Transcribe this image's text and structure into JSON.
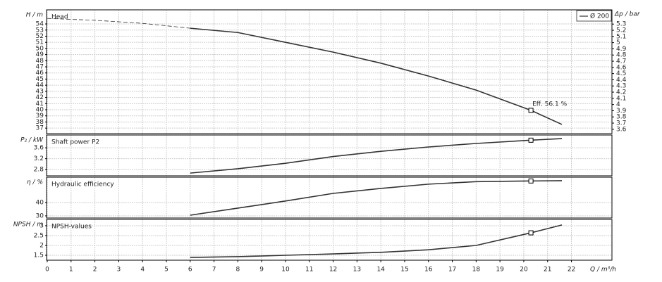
{
  "chart_data": [
    {
      "type": "line",
      "title": "Head",
      "y_label": "H / m",
      "y2_label": "Δp / bar",
      "xlim": [
        0,
        23.7
      ],
      "ylim": [
        36.1,
        56.3
      ],
      "yticks": [
        37,
        38,
        39,
        40,
        41,
        42,
        43,
        44,
        45,
        46,
        47,
        48,
        49,
        50,
        51,
        52,
        53,
        54
      ],
      "y2lim": [
        3.53,
        5.53
      ],
      "y2ticks": [
        3.6,
        3.7,
        3.8,
        3.9,
        4,
        4.1,
        4.2,
        4.3,
        4.4,
        4.5,
        4.6,
        4.7,
        4.8,
        4.9,
        5,
        5.1,
        5.2,
        5.3
      ],
      "grid": true,
      "legend": "top-right",
      "series": [
        {
          "name": "Ø 200",
          "color": "#333333",
          "x": [
            6,
            8,
            10,
            12,
            14,
            16,
            18,
            20.3,
            21.6
          ],
          "values": [
            53.3,
            52.6,
            51.0,
            49.4,
            47.6,
            45.5,
            43.2,
            39.9,
            37.6
          ]
        },
        {
          "style": "dashed",
          "color": "#333333",
          "x": [
            0,
            2,
            4,
            6
          ],
          "values": [
            54.9,
            54.6,
            54.1,
            53.3
          ]
        }
      ],
      "operating_point": {
        "x": 20.3,
        "value": 39.9,
        "label": "Eff.  56.1 %"
      }
    },
    {
      "type": "line",
      "title": "Shaft power P2",
      "y_label": "P₂ / kW",
      "xlim": [
        0,
        23.7
      ],
      "ylim": [
        2.57,
        4.07
      ],
      "yticks": [
        2.8,
        3.2,
        3.6
      ],
      "grid": true,
      "series": [
        {
          "color": "#333333",
          "x": [
            6,
            8,
            10,
            12,
            14,
            16,
            18,
            20.3,
            21.6
          ],
          "values": [
            2.67,
            2.83,
            3.03,
            3.28,
            3.47,
            3.63,
            3.76,
            3.88,
            3.94
          ]
        }
      ],
      "operating_point": {
        "x": 20.3,
        "value": 3.88
      }
    },
    {
      "type": "line",
      "title": "Hydraulic efficiency",
      "y_label": "η / %",
      "xlim": [
        0,
        23.7
      ],
      "ylim": [
        28.4,
        58.9
      ],
      "yticks": [
        30,
        40
      ],
      "grid": true,
      "series": [
        {
          "color": "#333333",
          "x": [
            6,
            8,
            10,
            12,
            14,
            16,
            18,
            20.3,
            21.6
          ],
          "values": [
            30.5,
            35.8,
            41.1,
            46.8,
            50.5,
            53.7,
            55.6,
            56.1,
            56.3
          ]
        }
      ],
      "operating_point": {
        "x": 20.3,
        "value": 56.1
      }
    },
    {
      "type": "line",
      "title": "NPSH-values",
      "y_label": "NPSH / m",
      "x_label": "Q / m³/h",
      "xlim": [
        0,
        23.7
      ],
      "xticks": [
        0,
        1,
        2,
        3,
        4,
        5,
        6,
        7,
        8,
        9,
        10,
        11,
        12,
        13,
        14,
        15,
        16,
        17,
        18,
        19,
        20,
        21,
        22
      ],
      "ylim": [
        1.25,
        3.32
      ],
      "yticks": [
        1.5,
        2,
        2.5,
        3
      ],
      "grid": true,
      "series": [
        {
          "color": "#333333",
          "x": [
            6,
            8,
            10,
            12,
            14,
            16,
            18,
            20.3,
            21.6
          ],
          "values": [
            1.39,
            1.43,
            1.5,
            1.57,
            1.65,
            1.78,
            2.0,
            2.64,
            3.04
          ]
        }
      ],
      "operating_point": {
        "x": 20.3,
        "value": 2.64
      }
    }
  ]
}
